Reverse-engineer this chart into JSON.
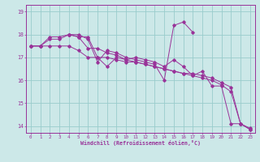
{
  "xlabel": "Windchill (Refroidissement éolien,°C)",
  "bg_color": "#cce8e8",
  "grid_color": "#99cccc",
  "line_color": "#993399",
  "xlim": [
    -0.5,
    23.5
  ],
  "ylim": [
    13.7,
    19.3
  ],
  "yticks": [
    14,
    15,
    16,
    17,
    18,
    19
  ],
  "xticks": [
    0,
    1,
    2,
    3,
    4,
    5,
    6,
    7,
    8,
    9,
    10,
    11,
    12,
    13,
    14,
    15,
    16,
    17,
    18,
    19,
    20,
    21,
    22,
    23
  ],
  "series": [
    {
      "x": [
        0,
        1,
        2,
        3,
        4,
        5,
        6,
        7,
        8,
        9,
        10,
        11,
        12,
        13,
        14,
        15,
        16,
        17,
        18,
        19,
        20,
        21,
        22,
        23
      ],
      "y": [
        17.5,
        17.5,
        17.5,
        17.5,
        17.5,
        17.3,
        17.0,
        17.0,
        17.0,
        16.9,
        16.8,
        16.8,
        16.7,
        16.6,
        16.5,
        16.4,
        16.3,
        16.3,
        16.2,
        16.1,
        15.9,
        15.7,
        14.1,
        13.9
      ]
    },
    {
      "x": [
        0,
        1,
        2,
        3,
        4,
        5,
        6,
        7,
        8,
        9,
        10,
        11,
        12,
        13,
        14,
        15,
        16,
        17,
        18,
        19,
        20,
        21,
        22,
        23
      ],
      "y": [
        17.5,
        17.5,
        17.8,
        17.8,
        18.0,
        17.9,
        17.4,
        17.4,
        17.2,
        17.1,
        16.9,
        16.8,
        16.7,
        16.6,
        16.5,
        16.4,
        16.3,
        16.2,
        16.1,
        16.0,
        15.8,
        15.5,
        14.1,
        13.85
      ]
    },
    {
      "x": [
        0,
        1,
        2,
        3,
        4,
        5,
        6,
        7,
        8,
        9,
        10,
        11,
        12,
        13,
        14,
        15,
        16,
        17
      ],
      "y": [
        17.5,
        17.5,
        17.9,
        17.9,
        18.0,
        18.0,
        17.8,
        16.8,
        17.3,
        17.2,
        17.0,
        16.9,
        16.8,
        16.7,
        16.0,
        18.4,
        18.55,
        18.1
      ]
    },
    {
      "x": [
        4,
        5,
        6,
        7,
        8,
        9,
        10,
        11,
        12,
        13,
        14,
        15,
        16,
        17,
        18,
        19,
        20,
        21,
        22,
        23
      ],
      "y": [
        18.0,
        17.9,
        17.9,
        17.0,
        16.6,
        17.0,
        16.9,
        17.0,
        16.9,
        16.8,
        16.6,
        16.9,
        16.6,
        16.2,
        16.4,
        15.75,
        15.75,
        14.1,
        14.1,
        13.85
      ]
    }
  ]
}
